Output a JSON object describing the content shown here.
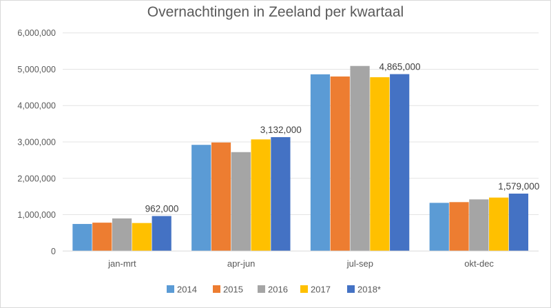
{
  "chart_data": {
    "type": "bar",
    "title": "Overnachtingen in Zeeland per kwartaal",
    "xlabel": "",
    "ylabel": "",
    "categories": [
      "jan-mrt",
      "apr-jun",
      "jul-sep",
      "okt-dec"
    ],
    "series": [
      {
        "name": "2014",
        "color": "#5B9BD5",
        "values": [
          744000,
          2920000,
          4860000,
          1325000
        ]
      },
      {
        "name": "2015",
        "color": "#ED7D31",
        "values": [
          780000,
          2985000,
          4800000,
          1345000
        ]
      },
      {
        "name": "2016",
        "color": "#A5A5A5",
        "values": [
          896000,
          2720000,
          5090000,
          1420000
        ]
      },
      {
        "name": "2017",
        "color": "#FFC000",
        "values": [
          770000,
          3070000,
          4780000,
          1470000
        ]
      },
      {
        "name": "2018*",
        "color": "#4472C4",
        "values": [
          962000,
          3132000,
          4865000,
          1579000
        ]
      }
    ],
    "data_labels": {
      "series": "2018*",
      "labels": [
        "962,000",
        "3,132,000",
        "4,865,000",
        "1,579,000"
      ]
    },
    "ylim": [
      0,
      6000000
    ],
    "yticks": [
      0,
      1000000,
      2000000,
      3000000,
      4000000,
      5000000,
      6000000
    ],
    "ytick_labels": [
      "0",
      "1,000,000",
      "2,000,000",
      "3,000,000",
      "4,000,000",
      "5,000,000",
      "6,000,000"
    ],
    "grid": true,
    "legend": "bottom"
  }
}
